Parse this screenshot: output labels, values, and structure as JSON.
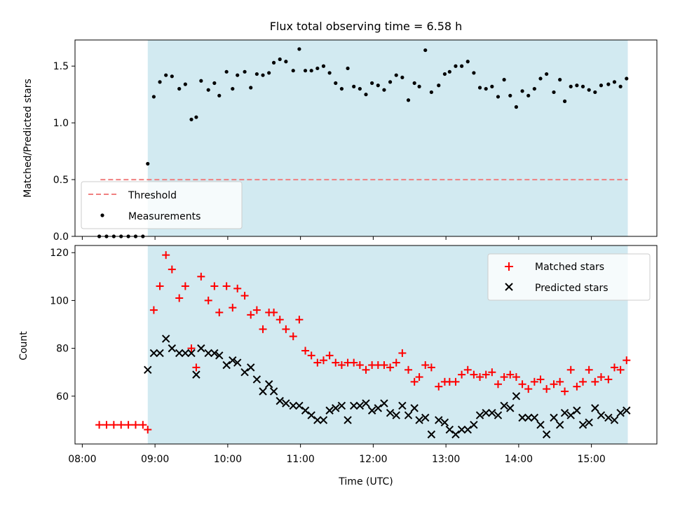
{
  "figure": {
    "title": "Flux total observing time = 6.58 h",
    "xlabel": "Time (UTC)",
    "xtick_labels": [
      "08:00",
      "09:00",
      "10:00",
      "11:00",
      "12:00",
      "13:00",
      "14:00",
      "15:00"
    ]
  },
  "chart_data": [
    {
      "type": "scatter",
      "title": "Flux total observing time = 6.58 h",
      "ylabel": "Matched/Predicted stars",
      "xlim": [
        "07:54",
        "15:54"
      ],
      "ylim": [
        0,
        1.73
      ],
      "x_ticks": [
        "08:00",
        "09:00",
        "10:00",
        "11:00",
        "12:00",
        "13:00",
        "14:00",
        "15:00"
      ],
      "y_ticks": [
        0.0,
        0.5,
        1.0,
        1.5
      ],
      "shaded_region": {
        "from": "08:54",
        "to": "15:30",
        "color": "#add8e6"
      },
      "legend": {
        "placement": "lower-left",
        "entries": [
          "Threshold",
          "Measurements"
        ]
      },
      "series": [
        {
          "name": "Threshold",
          "style": "dashed-line",
          "color": "#f08080",
          "x": [
            "08:15",
            "15:30"
          ],
          "values": [
            0.5,
            0.5
          ]
        },
        {
          "name": "Measurements",
          "style": "dots",
          "color": "#000000",
          "x": [
            "08:14",
            "08:20",
            "08:26",
            "08:32",
            "08:38",
            "08:44",
            "08:50",
            "08:54",
            "08:59",
            "09:04",
            "09:09",
            "09:14",
            "09:20",
            "09:25",
            "09:30",
            "09:34",
            "09:38",
            "09:44",
            "09:49",
            "09:53",
            "09:59",
            "10:04",
            "10:08",
            "10:14",
            "10:19",
            "10:24",
            "10:29",
            "10:34",
            "10:38",
            "10:43",
            "10:48",
            "10:54",
            "10:59",
            "11:04",
            "11:09",
            "11:14",
            "11:19",
            "11:24",
            "11:29",
            "11:34",
            "11:39",
            "11:44",
            "11:49",
            "11:54",
            "11:59",
            "12:04",
            "12:09",
            "12:14",
            "12:19",
            "12:24",
            "12:29",
            "12:34",
            "12:38",
            "12:43",
            "12:48",
            "12:54",
            "12:59",
            "13:03",
            "13:08",
            "13:13",
            "13:18",
            "13:23",
            "13:28",
            "13:33",
            "13:38",
            "13:43",
            "13:48",
            "13:53",
            "13:58",
            "14:03",
            "14:08",
            "14:13",
            "14:18",
            "14:23",
            "14:29",
            "14:34",
            "14:38",
            "14:43",
            "14:48",
            "14:53",
            "14:58",
            "15:03",
            "15:08",
            "15:14",
            "15:19",
            "15:24",
            "15:29"
          ],
          "values": [
            0.0,
            0.0,
            0.0,
            0.0,
            0.0,
            0.0,
            0.0,
            0.64,
            1.23,
            1.36,
            1.42,
            1.41,
            1.3,
            1.34,
            1.03,
            1.05,
            1.37,
            1.29,
            1.35,
            1.24,
            1.45,
            1.3,
            1.42,
            1.45,
            1.31,
            1.43,
            1.42,
            1.44,
            1.53,
            1.56,
            1.54,
            1.46,
            1.65,
            1.46,
            1.46,
            1.48,
            1.5,
            1.44,
            1.35,
            1.3,
            1.48,
            1.32,
            1.3,
            1.25,
            1.35,
            1.33,
            1.29,
            1.36,
            1.42,
            1.4,
            1.2,
            1.35,
            1.32,
            1.64,
            1.27,
            1.33,
            1.43,
            1.45,
            1.5,
            1.5,
            1.54,
            1.44,
            1.31,
            1.3,
            1.32,
            1.23,
            1.38,
            1.24,
            1.14,
            1.28,
            1.24,
            1.3,
            1.39,
            1.43,
            1.27,
            1.38,
            1.19,
            1.32,
            1.33,
            1.32,
            1.29,
            1.27,
            1.33,
            1.34,
            1.36,
            1.32,
            1.39
          ]
        }
      ]
    },
    {
      "type": "scatter",
      "title": "",
      "xlabel": "Time (UTC)",
      "ylabel": "Count",
      "xlim": [
        "07:54",
        "15:54"
      ],
      "ylim": [
        40,
        123
      ],
      "x_ticks": [
        "08:00",
        "09:00",
        "10:00",
        "11:00",
        "12:00",
        "13:00",
        "14:00",
        "15:00"
      ],
      "y_ticks": [
        60,
        80,
        100,
        120
      ],
      "shaded_region": {
        "from": "08:54",
        "to": "15:30",
        "color": "#add8e6"
      },
      "legend": {
        "placement": "upper-right",
        "entries": [
          "Matched stars",
          "Predicted stars"
        ]
      },
      "series": [
        {
          "name": "Matched stars",
          "style": "plus",
          "color": "#ff0000",
          "x": [
            "08:14",
            "08:20",
            "08:26",
            "08:32",
            "08:38",
            "08:44",
            "08:50",
            "08:54",
            "08:59",
            "09:04",
            "09:09",
            "09:14",
            "09:20",
            "09:25",
            "09:30",
            "09:34",
            "09:38",
            "09:44",
            "09:49",
            "09:53",
            "09:59",
            "10:04",
            "10:08",
            "10:14",
            "10:19",
            "10:24",
            "10:29",
            "10:34",
            "10:38",
            "10:43",
            "10:48",
            "10:54",
            "10:59",
            "11:04",
            "11:09",
            "11:14",
            "11:19",
            "11:24",
            "11:29",
            "11:34",
            "11:39",
            "11:44",
            "11:49",
            "11:54",
            "11:59",
            "12:04",
            "12:09",
            "12:14",
            "12:19",
            "12:24",
            "12:29",
            "12:34",
            "12:38",
            "12:43",
            "12:48",
            "12:54",
            "12:59",
            "13:03",
            "13:08",
            "13:13",
            "13:18",
            "13:23",
            "13:28",
            "13:33",
            "13:38",
            "13:43",
            "13:48",
            "13:53",
            "13:58",
            "14:03",
            "14:08",
            "14:13",
            "14:18",
            "14:23",
            "14:29",
            "14:34",
            "14:38",
            "14:43",
            "14:48",
            "14:53",
            "14:58",
            "15:03",
            "15:08",
            "15:14",
            "15:19",
            "15:24",
            "15:29"
          ],
          "values": [
            48,
            48,
            48,
            48,
            48,
            48,
            48,
            46,
            96,
            106,
            119,
            113,
            101,
            106,
            80,
            72,
            110,
            100,
            106,
            95,
            106,
            97,
            105,
            102,
            94,
            96,
            88,
            95,
            95,
            92,
            88,
            85,
            92,
            79,
            77,
            74,
            75,
            77,
            74,
            73,
            74,
            74,
            73,
            71,
            73,
            73,
            73,
            72,
            74,
            78,
            71,
            66,
            68,
            73,
            72,
            64,
            66,
            66,
            66,
            69,
            71,
            69,
            68,
            69,
            70,
            65,
            68,
            69,
            68,
            65,
            63,
            66,
            67,
            63,
            65,
            66,
            62,
            71,
            64,
            66,
            71,
            66,
            68,
            67,
            72,
            71,
            75
          ]
        },
        {
          "name": "Predicted stars",
          "style": "cross",
          "color": "#000000",
          "x": [
            "08:54",
            "08:59",
            "09:04",
            "09:09",
            "09:14",
            "09:20",
            "09:25",
            "09:30",
            "09:34",
            "09:38",
            "09:44",
            "09:49",
            "09:53",
            "09:59",
            "10:04",
            "10:08",
            "10:14",
            "10:19",
            "10:24",
            "10:29",
            "10:34",
            "10:38",
            "10:43",
            "10:48",
            "10:54",
            "10:59",
            "11:04",
            "11:09",
            "11:14",
            "11:19",
            "11:24",
            "11:29",
            "11:34",
            "11:39",
            "11:44",
            "11:49",
            "11:54",
            "11:59",
            "12:04",
            "12:09",
            "12:14",
            "12:19",
            "12:24",
            "12:29",
            "12:34",
            "12:38",
            "12:43",
            "12:48",
            "12:54",
            "12:59",
            "13:03",
            "13:08",
            "13:13",
            "13:18",
            "13:23",
            "13:28",
            "13:33",
            "13:38",
            "13:43",
            "13:48",
            "13:53",
            "13:58",
            "14:03",
            "14:08",
            "14:13",
            "14:18",
            "14:23",
            "14:29",
            "14:34",
            "14:38",
            "14:43",
            "14:48",
            "14:53",
            "14:58",
            "15:03",
            "15:08",
            "15:14",
            "15:19",
            "15:24",
            "15:29"
          ],
          "values": [
            71,
            78,
            78,
            84,
            80,
            78,
            78,
            78,
            69,
            80,
            78,
            78,
            77,
            73,
            75,
            74,
            70,
            72,
            67,
            62,
            65,
            62,
            58,
            57,
            56,
            56,
            54,
            52,
            50,
            50,
            54,
            55,
            56,
            50,
            56,
            56,
            57,
            54,
            55,
            57,
            53,
            52,
            56,
            52,
            55,
            50,
            51,
            44,
            50,
            49,
            46,
            44,
            46,
            46,
            48,
            52,
            53,
            53,
            52,
            56,
            55,
            60,
            51,
            51,
            51,
            48,
            44,
            51,
            48,
            53,
            52,
            54,
            48,
            49,
            55,
            52,
            51,
            50,
            53,
            54
          ]
        }
      ]
    }
  ]
}
